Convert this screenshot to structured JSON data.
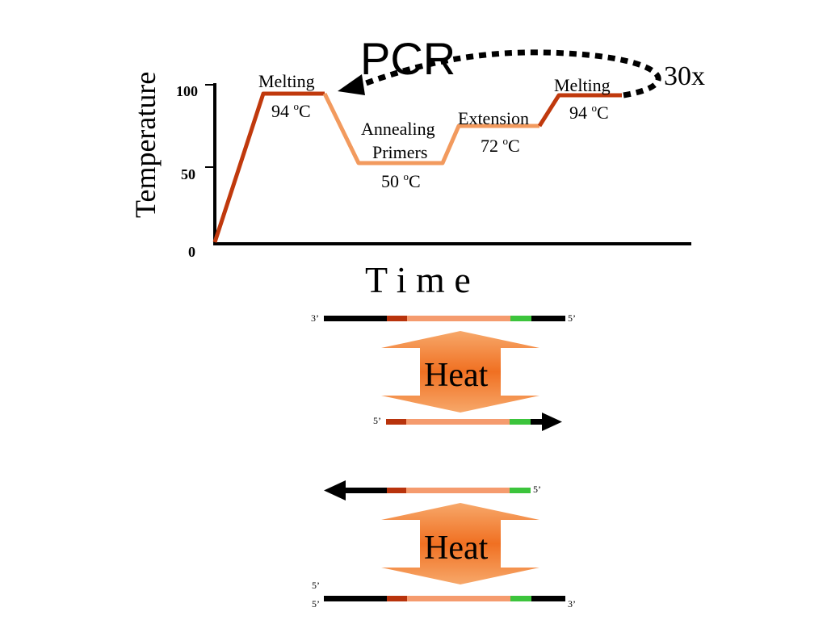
{
  "title": "PCR",
  "cycles": "30x",
  "axes": {
    "ylabel": "Temperature",
    "xlabel": "T i m e",
    "ticks": [
      "100",
      "50",
      "0"
    ]
  },
  "stages": {
    "melting1": {
      "label": "Melting",
      "temp_num": "94 ",
      "temp_sup": "o",
      "temp_unit": "C"
    },
    "annealing": {
      "label1": "Annealing",
      "label2": "Primers",
      "temp_num": "50 ",
      "temp_sup": "o",
      "temp_unit": "C"
    },
    "extension": {
      "label": "Extension",
      "temp_num": "72 ",
      "temp_sup": "o",
      "temp_unit": "C"
    },
    "melting2": {
      "label": "Melting",
      "temp_num": "94 ",
      "temp_sup": "o",
      "temp_unit": "C"
    }
  },
  "dna": {
    "strand1_left": "3’",
    "strand1_right": "5’",
    "strand2_left": "5’",
    "strand3_right": "5’",
    "strand4_left_top": "5’",
    "strand4_left_bottom": "5’",
    "strand4_right": "3’"
  },
  "heat_label": "Heat",
  "colors": {
    "ramp_dark": "#c0390d",
    "ramp_light": "#f29a5e",
    "dna_black": "#000000",
    "dna_red": "#b8330c",
    "dna_salmon": "#f59b6e",
    "dna_green": "#3cc43c",
    "heat_arrow": "#f07a2a"
  }
}
